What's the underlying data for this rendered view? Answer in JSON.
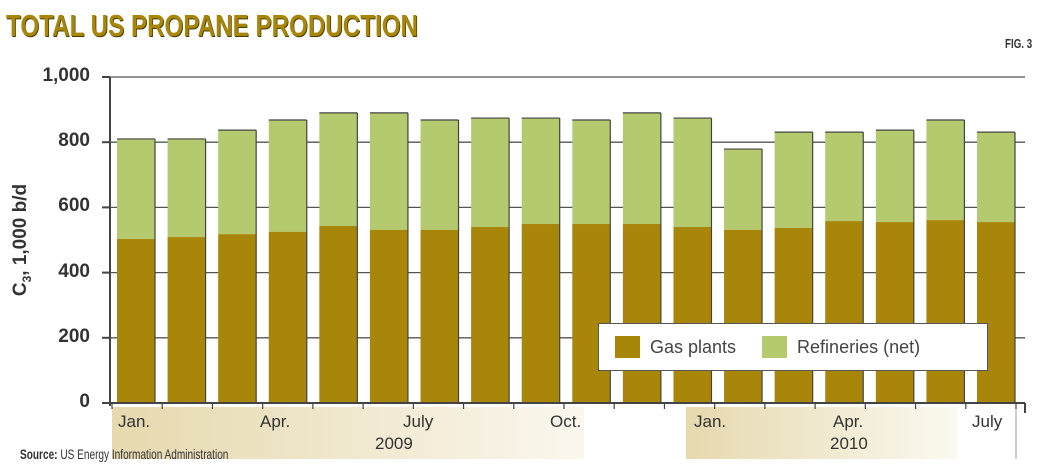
{
  "header": {
    "title": "TOTAL US PROPANE PRODUCTION",
    "figure_label": "FIG. 3"
  },
  "axis": {
    "y_label_main": "C",
    "y_label_sub": "3",
    "y_label_rest": ", 1,000 b/d",
    "y_ticks": [
      "1,000",
      "800",
      "600",
      "400",
      "200",
      "0"
    ],
    "x_month_labels": [
      "Jan.",
      "Apr.",
      "July",
      "Oct.",
      "Jan.",
      "Apr.",
      "July"
    ],
    "x_year_labels": [
      "2009",
      "2010"
    ]
  },
  "legend": {
    "items": [
      {
        "label": "Gas plants",
        "color": "#a8860a"
      },
      {
        "label": "Refineries (net)",
        "color": "#b5c96e"
      }
    ]
  },
  "footer": {
    "source_prefix": "Source:",
    "source_text": "US Energy Information Administration"
  },
  "colors": {
    "gas_plants": "#a8860a",
    "refineries": "#b5c96e",
    "axis": "#444444",
    "band_2009": "#e8ddb5",
    "band_2010": "#e8ddb5"
  },
  "chart_data": {
    "type": "bar",
    "stacked": true,
    "title": "TOTAL US PROPANE PRODUCTION",
    "xlabel": "",
    "ylabel": "C3, 1,000 b/d",
    "ylim": [
      0,
      1000
    ],
    "yticks": [
      0,
      200,
      400,
      600,
      800,
      1000
    ],
    "grid": true,
    "legend_position": "lower right (inside plot)",
    "categories": [
      "Jan. 2009",
      "Feb. 2009",
      "Mar. 2009",
      "Apr. 2009",
      "May 2009",
      "June 2009",
      "July 2009",
      "Aug. 2009",
      "Sept. 2009",
      "Oct. 2009",
      "Nov. 2009",
      "Dec. 2009",
      "Jan. 2010",
      "Feb. 2010",
      "Mar. 2010",
      "Apr. 2010",
      "May 2010",
      "June 2010"
    ],
    "series": [
      {
        "name": "Gas plants",
        "values": [
          503,
          509,
          518,
          525,
          543,
          531,
          531,
          540,
          549,
          549,
          549,
          540,
          531,
          537,
          558,
          555,
          561,
          555
        ]
      },
      {
        "name": "Refineries (net)",
        "values": [
          307,
          301,
          319,
          343,
          347,
          359,
          337,
          334,
          325,
          319,
          341,
          334,
          248,
          294,
          273,
          282,
          307,
          276
        ]
      }
    ],
    "totals": [
      810,
      810,
      837,
      868,
      890,
      890,
      868,
      874,
      874,
      868,
      890,
      874,
      779,
      831,
      831,
      837,
      868,
      831
    ],
    "x_axis_groups": [
      {
        "year": "2009",
        "months": [
          "Jan.",
          "Apr.",
          "July",
          "Oct."
        ]
      },
      {
        "year": "2010",
        "months": [
          "Jan.",
          "Apr.",
          "July"
        ]
      }
    ],
    "source": "Source: US Energy Information Administration"
  }
}
